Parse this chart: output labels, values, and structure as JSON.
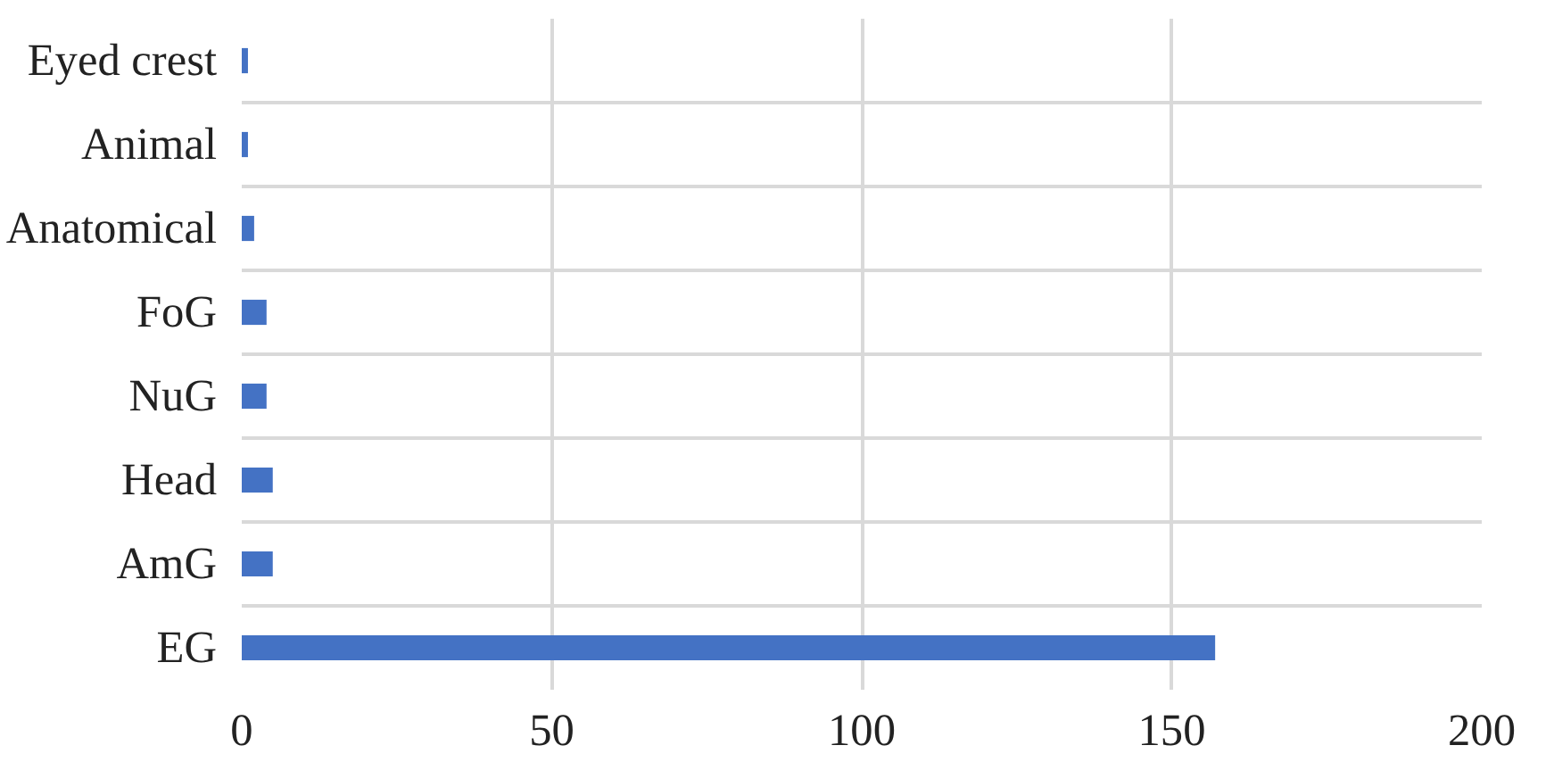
{
  "chart_data": {
    "type": "bar",
    "orientation": "horizontal",
    "categories": [
      "Eyed crest",
      "Animal",
      "Anatomical",
      "FoG",
      "NuG",
      "Head",
      "AmG",
      "EG"
    ],
    "values": [
      1,
      1,
      2,
      4,
      4,
      5,
      5,
      157
    ],
    "color": "#4472c4",
    "xlim": [
      0,
      200
    ],
    "xticks": [
      0,
      50,
      100,
      150,
      200
    ],
    "grid": true
  }
}
